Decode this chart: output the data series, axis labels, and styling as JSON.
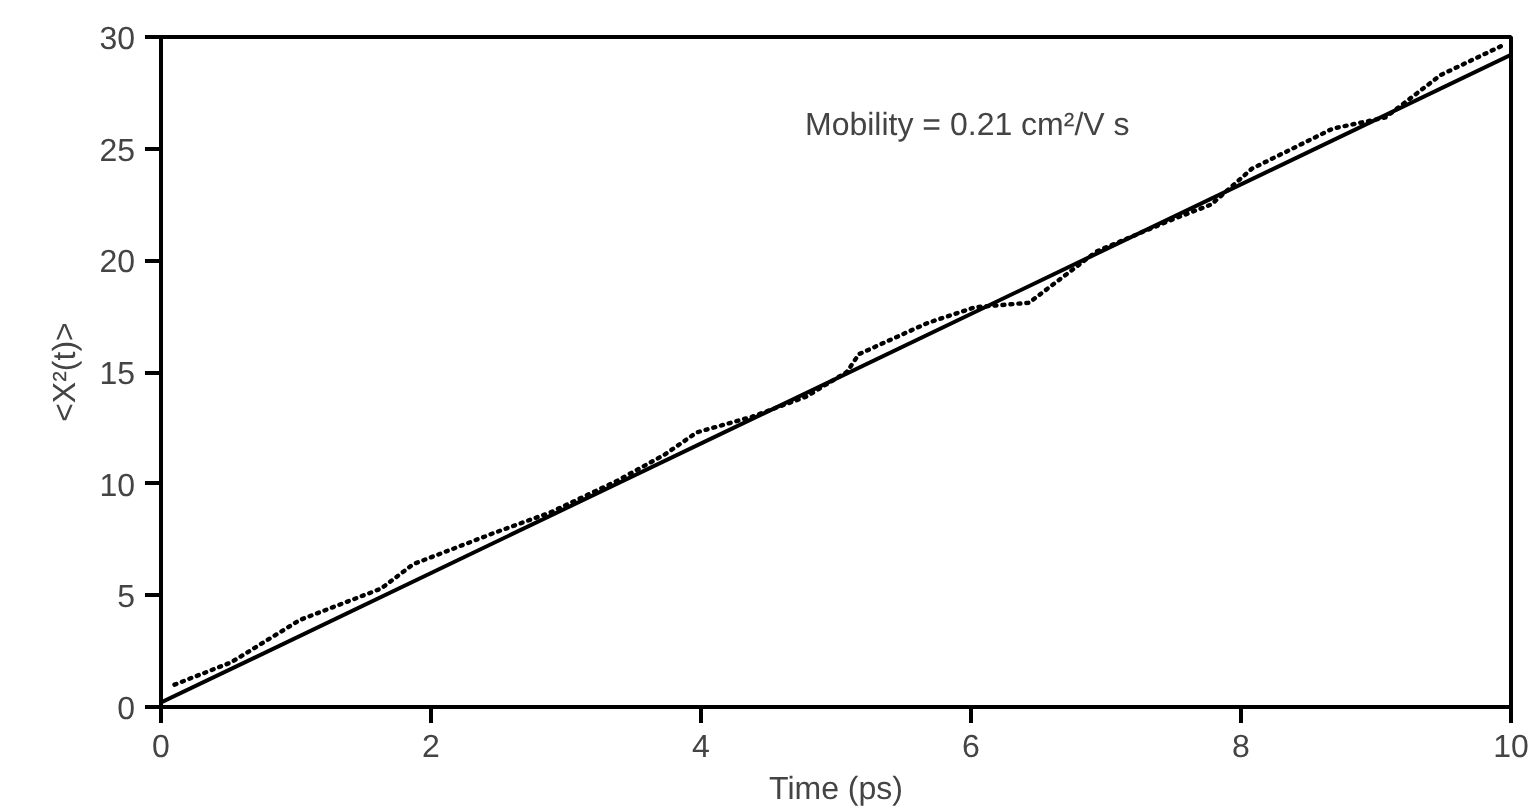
{
  "chart_data": {
    "type": "line",
    "xlabel": "Time (ps)",
    "ylabel": "<X²(t)>",
    "xlim": [
      0,
      10
    ],
    "ylim": [
      0,
      30
    ],
    "xticks": [
      0,
      2,
      4,
      6,
      8,
      10
    ],
    "yticks": [
      0,
      5,
      10,
      15,
      20,
      25,
      30
    ],
    "grid": false,
    "annotations": [
      "Mobility = 0.21 cm²/V s"
    ],
    "series": [
      {
        "color": "#000000",
        "line_style": "dotted",
        "x": [
          0.1,
          0.52,
          1.03,
          1.63,
          1.87,
          2.47,
          2.88,
          3.37,
          3.73,
          3.97,
          4.38,
          4.78,
          5.08,
          5.17,
          5.68,
          6.03,
          6.43,
          6.93,
          7.48,
          7.78,
          8.08,
          8.68,
          9.07,
          9.48,
          9.93
        ],
        "values": [
          1.0,
          2.0,
          3.9,
          5.3,
          6.4,
          7.8,
          8.7,
          10.1,
          11.3,
          12.3,
          13.0,
          13.9,
          15.0,
          15.8,
          17.2,
          17.9,
          18.1,
          20.4,
          21.8,
          22.5,
          24.1,
          25.9,
          26.4,
          28.3,
          29.6
        ]
      },
      {
        "color": "#000000",
        "line_style": "solid",
        "x": [
          0,
          10
        ],
        "values": [
          0.2,
          29.2
        ]
      }
    ]
  }
}
